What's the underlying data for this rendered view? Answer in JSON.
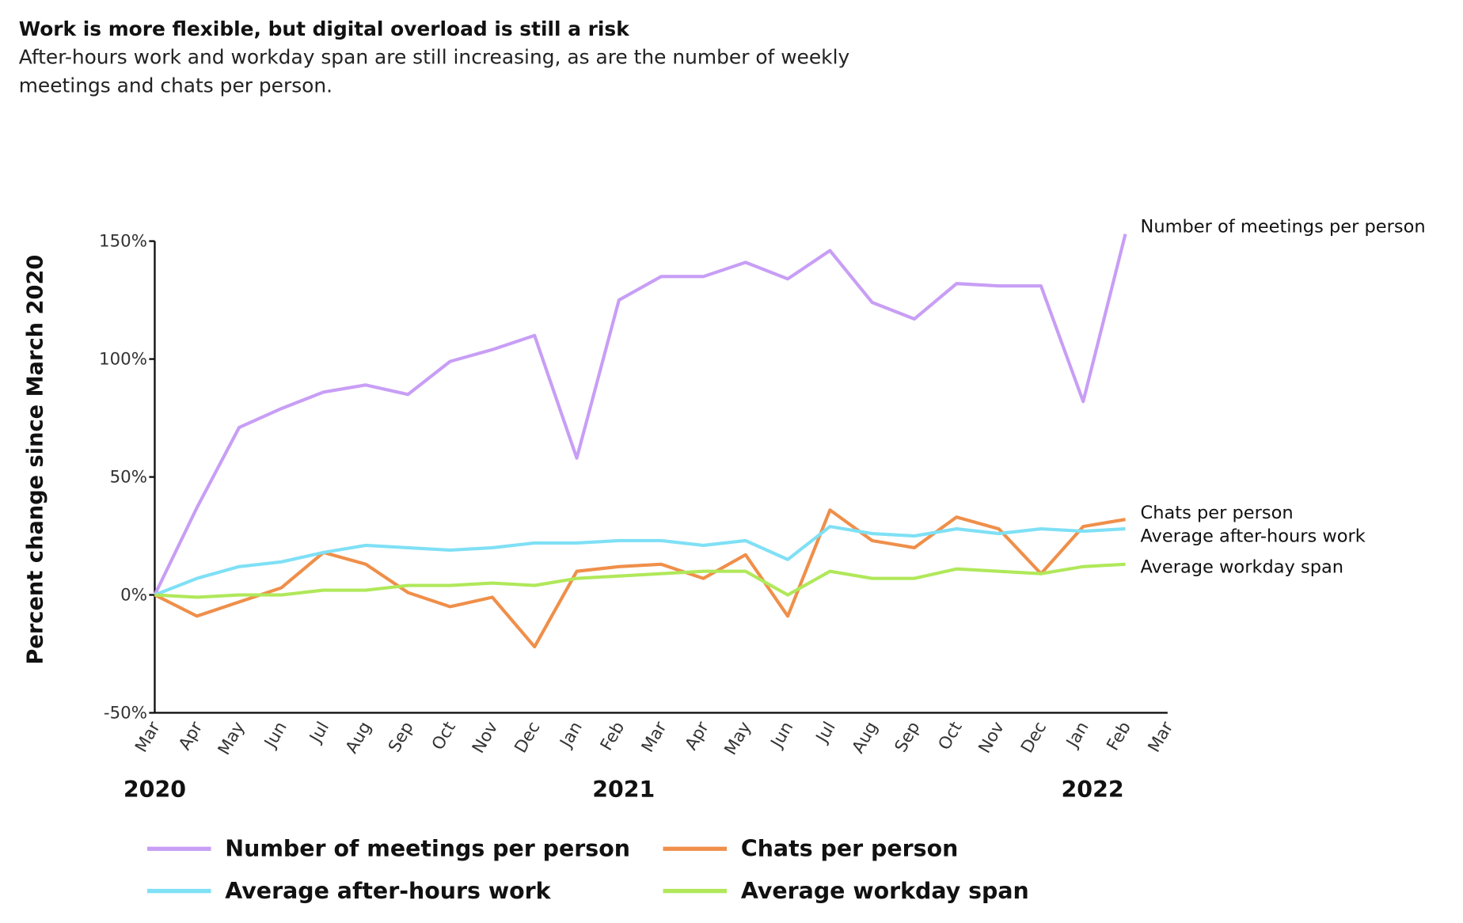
{
  "chart_data": {
    "type": "line",
    "title": "Work is more flexible, but digital overload is still a risk",
    "subtitle": "After-hours work and workday span are still increasing, as are the number of weekly meetings and chats per person.",
    "y_label": "Percent change since March 2020",
    "categories": [
      "Mar",
      "Apr",
      "May",
      "Jun",
      "Jul",
      "Aug",
      "Sep",
      "Oct",
      "Nov",
      "Dec",
      "Jan",
      "Feb",
      "Mar",
      "Apr",
      "May",
      "Jun",
      "Jul",
      "Aug",
      "Sep",
      "Oct",
      "Nov",
      "Dec",
      "Jan",
      "Feb",
      "Mar"
    ],
    "year_labels": [
      "2020",
      "2021",
      "2022"
    ],
    "ylim": [
      -50,
      150
    ],
    "yticks": [
      {
        "value": -50,
        "label": "-50%"
      },
      {
        "value": 0,
        "label": "0%"
      },
      {
        "value": 50,
        "label": "50%"
      },
      {
        "value": 100,
        "label": "100%"
      },
      {
        "value": 150,
        "label": "150%"
      }
    ],
    "series": [
      {
        "name": "Number of meetings per person",
        "color": "#c89ef5",
        "values": [
          0,
          37,
          71,
          79,
          86,
          89,
          85,
          99,
          104,
          110,
          58,
          125,
          135,
          135,
          141,
          134,
          146,
          124,
          117,
          132,
          131,
          131,
          82,
          153,
          null
        ]
      },
      {
        "name": "Chats per person",
        "color": "#ef8f4a",
        "values": [
          0,
          -9,
          -3,
          3,
          18,
          13,
          1,
          -5,
          -1,
          -22,
          10,
          12,
          13,
          7,
          17,
          -9,
          36,
          23,
          20,
          33,
          28,
          9,
          29,
          32,
          null
        ]
      },
      {
        "name": "Average after-hours work",
        "color": "#7fe0f5",
        "values": [
          0,
          7,
          12,
          14,
          18,
          21,
          20,
          19,
          20,
          22,
          22,
          23,
          23,
          21,
          23,
          15,
          29,
          26,
          25,
          28,
          26,
          28,
          27,
          28,
          null
        ]
      },
      {
        "name": "Average workday span",
        "color": "#b0e85a",
        "values": [
          0,
          -1,
          0,
          0,
          2,
          2,
          4,
          4,
          5,
          4,
          7,
          8,
          9,
          10,
          10,
          0,
          10,
          7,
          7,
          11,
          10,
          9,
          12,
          13,
          null
        ]
      }
    ]
  }
}
